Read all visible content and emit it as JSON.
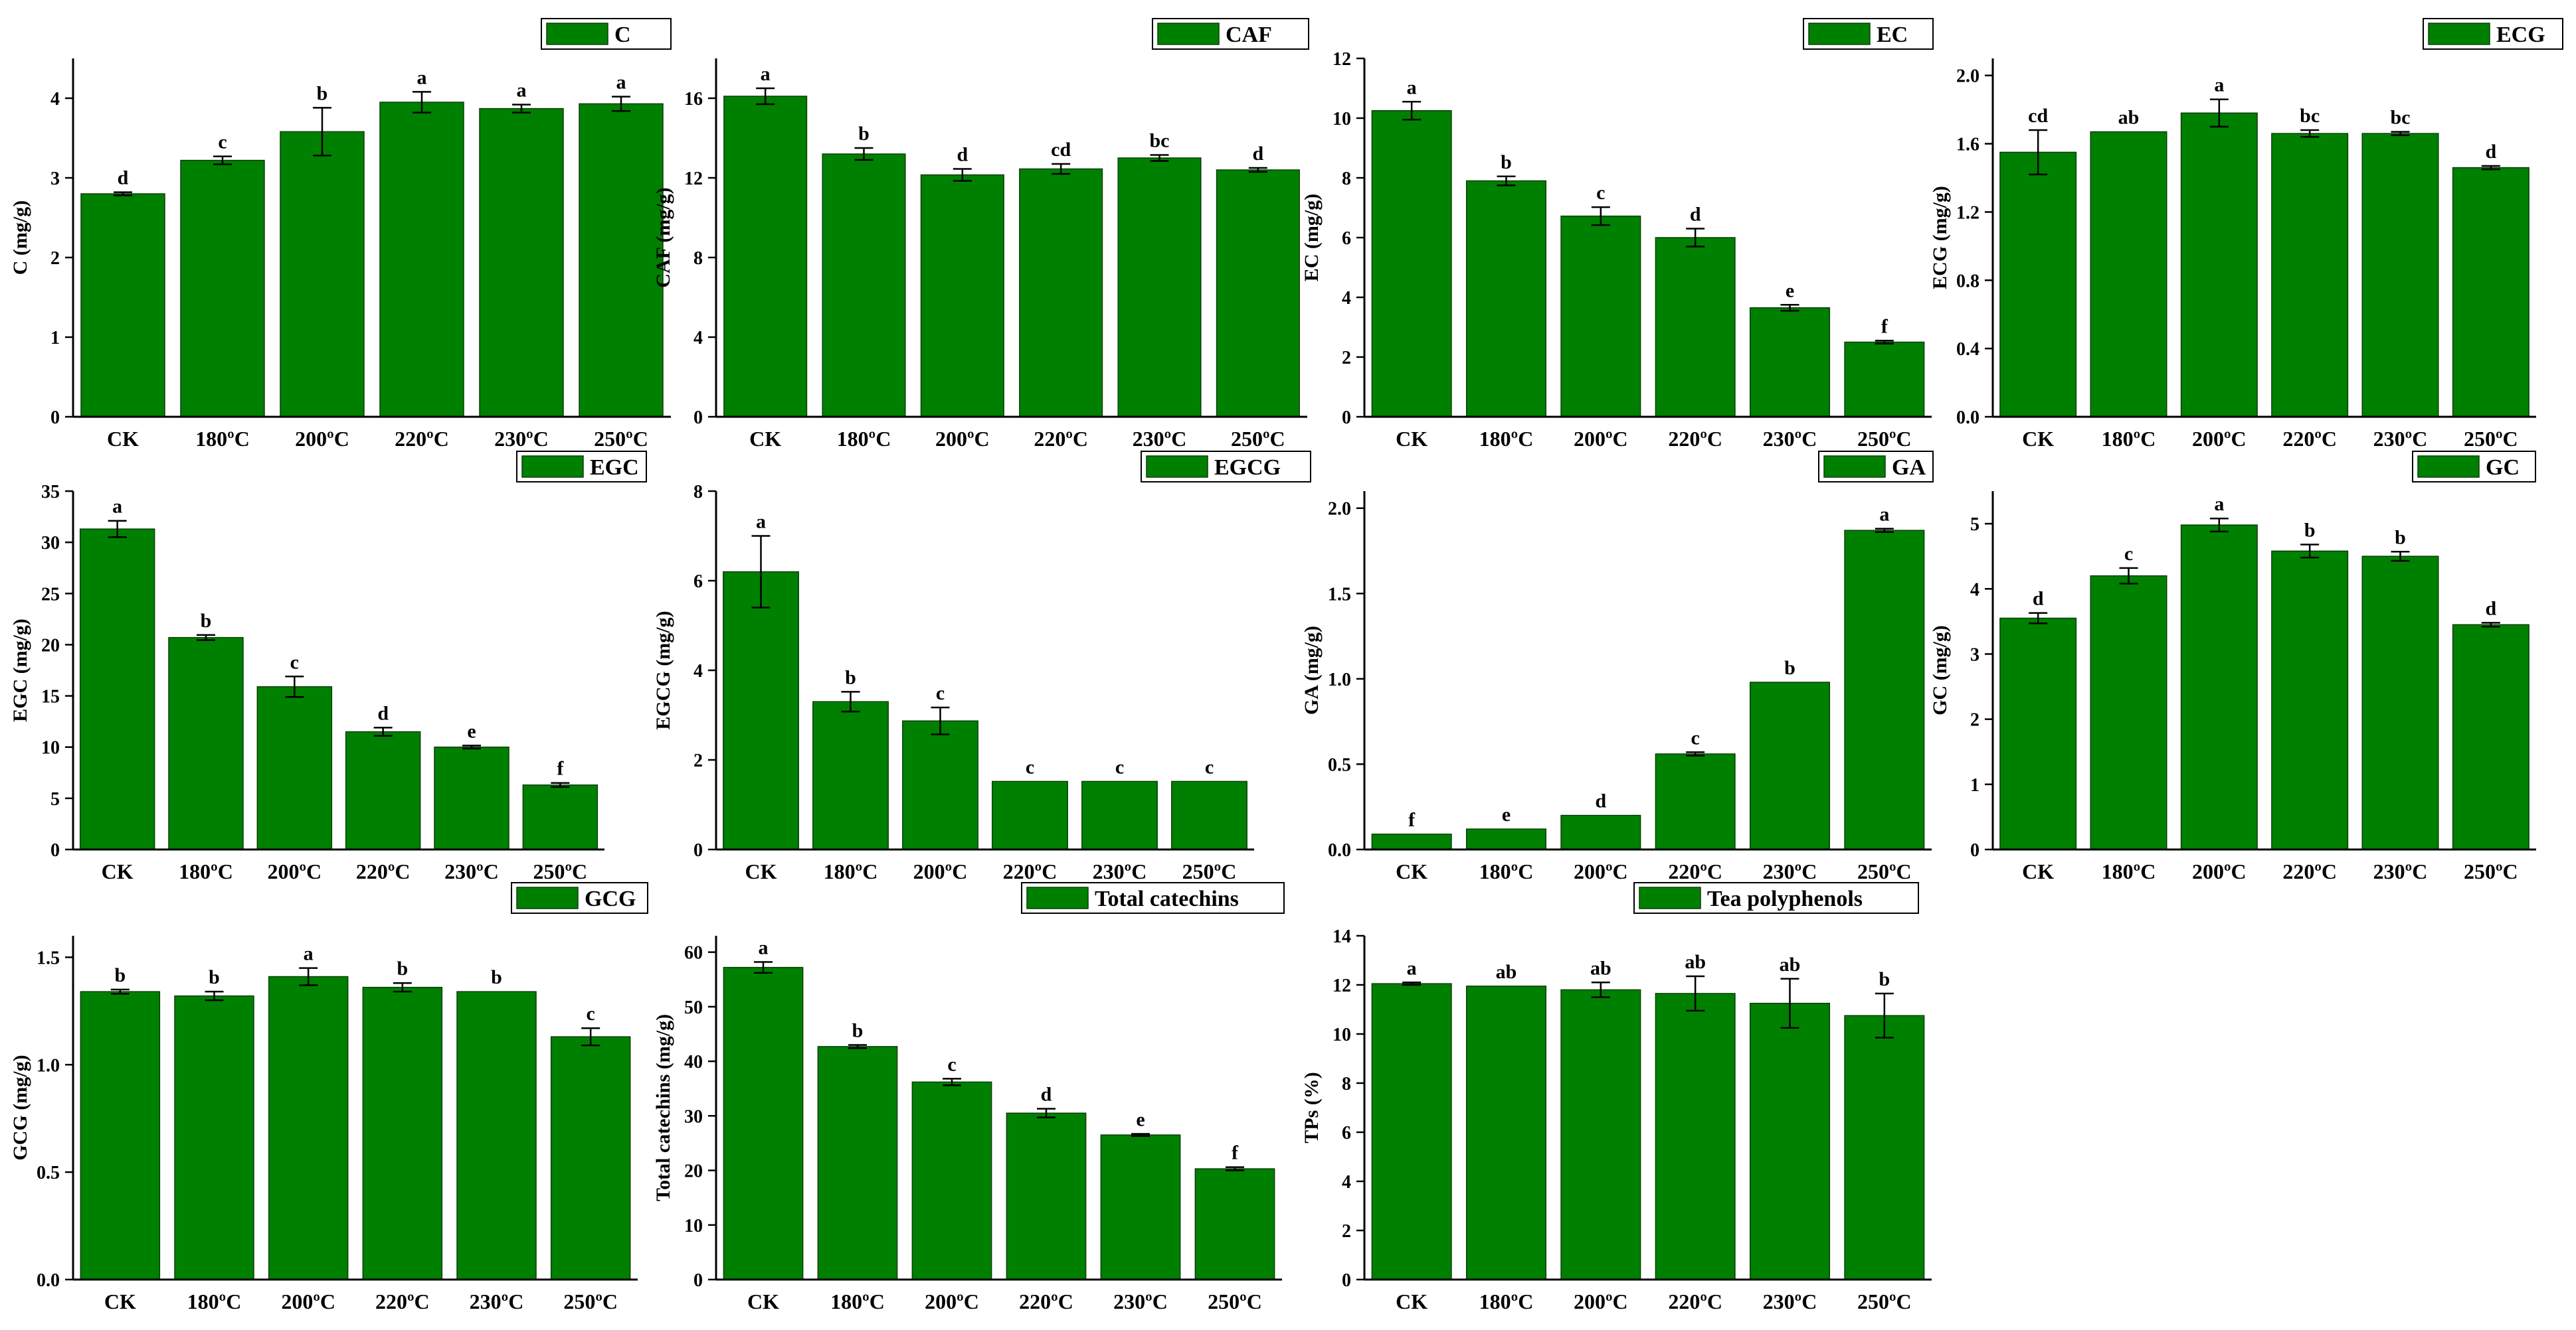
{
  "chart_data": [
    {
      "type": "bar",
      "title": "",
      "legend": "C",
      "ylabel": "C (mg/g)",
      "categories": [
        "CK",
        "180ºC",
        "200ºC",
        "220ºC",
        "230ºC",
        "250ºC"
      ],
      "values": [
        2.8,
        3.22,
        3.58,
        3.95,
        3.87,
        3.93
      ],
      "errors": [
        0.02,
        0.05,
        0.3,
        0.13,
        0.05,
        0.09
      ],
      "letters": [
        "d",
        "c",
        "b",
        "a",
        "a",
        "a"
      ],
      "ylim": [
        0,
        4.5
      ],
      "yticks": [
        "0",
        "1",
        "2",
        "3",
        "4"
      ]
    },
    {
      "type": "bar",
      "title": "",
      "legend": "CAF",
      "ylabel": "CAF (mg/g)",
      "categories": [
        "CK",
        "180ºC",
        "200ºC",
        "220ºC",
        "230ºC",
        "250ºC"
      ],
      "values": [
        16.1,
        13.2,
        12.15,
        12.45,
        13.0,
        12.4
      ],
      "errors": [
        0.4,
        0.3,
        0.3,
        0.25,
        0.15,
        0.1
      ],
      "letters": [
        "a",
        "b",
        "d",
        "cd",
        "bc",
        "d"
      ],
      "ylim": [
        0,
        18
      ],
      "yticks": [
        "0",
        "4",
        "8",
        "12",
        "16"
      ]
    },
    {
      "type": "bar",
      "title": "",
      "legend": "EC",
      "ylabel": "EC (mg/g)",
      "categories": [
        "CK",
        "180ºC",
        "200ºC",
        "220ºC",
        "230ºC",
        "250ºC"
      ],
      "values": [
        10.25,
        7.9,
        6.72,
        6.0,
        3.65,
        2.5
      ],
      "errors": [
        0.3,
        0.15,
        0.3,
        0.3,
        0.1,
        0.05
      ],
      "letters": [
        "a",
        "b",
        "c",
        "d",
        "e",
        "f"
      ],
      "ylim": [
        0,
        12
      ],
      "yticks": [
        "0",
        "2",
        "4",
        "6",
        "8",
        "10",
        "12"
      ]
    },
    {
      "type": "bar",
      "title": "",
      "legend": "ECG",
      "ylabel": "ECG (mg/g)",
      "categories": [
        "CK",
        "180ºC",
        "200ºC",
        "220ºC",
        "230ºC",
        "250ºC"
      ],
      "values": [
        1.55,
        1.67,
        1.78,
        1.66,
        1.66,
        1.46
      ],
      "errors": [
        0.13,
        0.0,
        0.08,
        0.02,
        0.01,
        0.01
      ],
      "letters": [
        "cd",
        "ab",
        "a",
        "bc",
        "bc",
        "d"
      ],
      "ylim": [
        0,
        2.1
      ],
      "yticks": [
        "0.0",
        "0.4",
        "0.8",
        "1.2",
        "1.6",
        "2.0"
      ]
    },
    {
      "type": "bar",
      "title": "",
      "legend": "EGC",
      "ylabel": "EGC (mg/g)",
      "categories": [
        "CK",
        "180ºC",
        "200ºC",
        "220ºC",
        "230ºC",
        "250ºC"
      ],
      "values": [
        31.3,
        20.7,
        15.9,
        11.5,
        10.0,
        6.3
      ],
      "errors": [
        0.8,
        0.25,
        1.0,
        0.4,
        0.15,
        0.2
      ],
      "letters": [
        "a",
        "b",
        "c",
        "d",
        "e",
        "f"
      ],
      "ylim": [
        0,
        35
      ],
      "yticks": [
        "0",
        "5",
        "10",
        "15",
        "20",
        "25",
        "30",
        "35"
      ]
    },
    {
      "type": "bar",
      "title": "",
      "legend": "EGCG",
      "ylabel": "EGCG (mg/g)",
      "categories": [
        "CK",
        "180ºC",
        "200ºC",
        "220ºC",
        "230ºC",
        "250ºC"
      ],
      "values": [
        6.2,
        3.3,
        2.87,
        1.52,
        1.52,
        1.52
      ],
      "errors": [
        0.8,
        0.22,
        0.3,
        0.0,
        0.0,
        0.0
      ],
      "letters": [
        "a",
        "b",
        "c",
        "c",
        "c",
        "c"
      ],
      "ylim": [
        0,
        8
      ],
      "yticks": [
        "0",
        "2",
        "4",
        "6",
        "8"
      ]
    },
    {
      "type": "bar",
      "title": "",
      "legend": "GA",
      "ylabel": "GA (mg/g)",
      "categories": [
        "CK",
        "180ºC",
        "200ºC",
        "220ºC",
        "230ºC",
        "250ºC"
      ],
      "values": [
        0.09,
        0.12,
        0.2,
        0.56,
        0.98,
        1.87
      ],
      "errors": [
        0.0,
        0.0,
        0.0,
        0.01,
        0.0,
        0.01
      ],
      "letters": [
        "f",
        "e",
        "d",
        "c",
        "b",
        "a"
      ],
      "ylim": [
        0,
        2.1
      ],
      "yticks": [
        "0.0",
        "0.5",
        "1.0",
        "1.5",
        "2.0"
      ]
    },
    {
      "type": "bar",
      "title": "",
      "legend": "GC",
      "ylabel": "GC (mg/g)",
      "categories": [
        "CK",
        "180ºC",
        "200ºC",
        "220ºC",
        "230ºC",
        "250ºC"
      ],
      "values": [
        3.55,
        4.2,
        4.98,
        4.58,
        4.5,
        3.45
      ],
      "errors": [
        0.08,
        0.12,
        0.1,
        0.1,
        0.07,
        0.03
      ],
      "letters": [
        "d",
        "c",
        "a",
        "b",
        "b",
        "d"
      ],
      "ylim": [
        0,
        5.5
      ],
      "yticks": [
        "0",
        "1",
        "2",
        "3",
        "4",
        "5"
      ]
    },
    {
      "type": "bar",
      "title": "",
      "legend": "GCG",
      "ylabel": "GCG (mg/g)",
      "categories": [
        "CK",
        "180ºC",
        "200ºC",
        "220ºC",
        "230ºC",
        "250ºC"
      ],
      "values": [
        1.34,
        1.32,
        1.41,
        1.36,
        1.34,
        1.13
      ],
      "errors": [
        0.01,
        0.02,
        0.04,
        0.02,
        0.0,
        0.04
      ],
      "letters": [
        "b",
        "b",
        "a",
        "b",
        "b",
        "c"
      ],
      "ylim": [
        0,
        1.6
      ],
      "yticks": [
        "0.0",
        "0.5",
        "1.0",
        "1.5"
      ]
    },
    {
      "type": "bar",
      "title": "",
      "legend": "Total catechins",
      "ylabel": "Total catechins (mg/g)",
      "categories": [
        "CK",
        "180ºC",
        "200ºC",
        "220ºC",
        "230ºC",
        "250ºC"
      ],
      "values": [
        57.2,
        42.7,
        36.2,
        30.5,
        26.5,
        20.3
      ],
      "errors": [
        1.0,
        0.3,
        0.6,
        0.8,
        0.2,
        0.3
      ],
      "letters": [
        "a",
        "b",
        "c",
        "d",
        "e",
        "f"
      ],
      "ylim": [
        0,
        63
      ],
      "yticks": [
        "0",
        "10",
        "20",
        "30",
        "40",
        "50",
        "60"
      ]
    },
    {
      "type": "bar",
      "title": "",
      "legend": "Tea polyphenols",
      "ylabel": "TPs (%)",
      "categories": [
        "CK",
        "180ºC",
        "200ºC",
        "220ºC",
        "230ºC",
        "250ºC"
      ],
      "values": [
        12.05,
        11.95,
        11.8,
        11.65,
        11.25,
        10.75
      ],
      "errors": [
        0.05,
        0.0,
        0.3,
        0.7,
        1.0,
        0.9
      ],
      "letters": [
        "a",
        "ab",
        "ab",
        "ab",
        "ab",
        "b"
      ],
      "ylim": [
        0,
        14
      ],
      "yticks": [
        "0",
        "2",
        "4",
        "6",
        "8",
        "10",
        "12",
        "14"
      ]
    }
  ]
}
